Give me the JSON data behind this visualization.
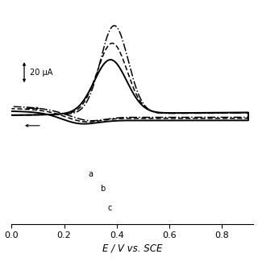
{
  "title": "",
  "xlabel": "E / V vs. SCE",
  "xlim": [
    0.0,
    0.92
  ],
  "ylim": [
    -1.05,
    1.05
  ],
  "xticks": [
    0.0,
    0.2,
    0.4,
    0.6,
    0.8
  ],
  "xtick_labels": [
    "0.0",
    "0.2",
    "0.4",
    "0.6",
    "0.8"
  ],
  "background_color": "#ffffff",
  "curve_color": "#000000",
  "scale_label": "20 μA",
  "label_a": "a",
  "label_b": "b",
  "label_c": "c"
}
